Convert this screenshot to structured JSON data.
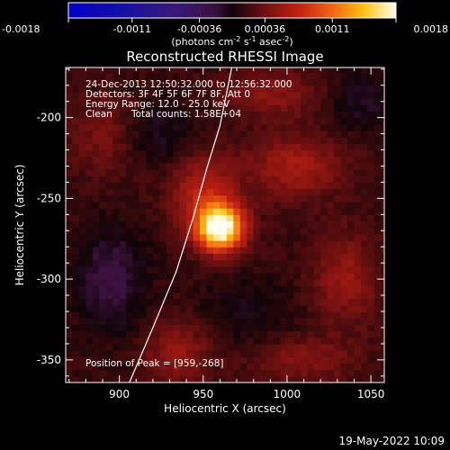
{
  "colorbar": {
    "ticks": [
      "-0.0018",
      "-0.0011",
      "-0.00036",
      "0.00036",
      "0.0011",
      "0.0018"
    ],
    "tick_values": [
      -0.0018,
      -0.0011,
      -0.00036,
      0.00036,
      0.0011,
      0.0018
    ],
    "range": [
      -0.0018,
      0.0018
    ],
    "units_prefix": "(photons cm",
    "units_exp1": "-2",
    "units_mid1": " s",
    "units_exp2": "-1",
    "units_mid2": " asec",
    "units_exp3": "-2",
    "units_suffix": ")"
  },
  "chart_data": {
    "type": "heatmap",
    "title": "Reconstructed RHESSI Image",
    "xlabel": "Heliocentric X (arcsec)",
    "ylabel": "Heliocentric Y (arcsec)",
    "xlim": [
      868,
      1058
    ],
    "ylim": [
      -364,
      -169
    ],
    "x_ticks": [
      900,
      950,
      1000,
      1050
    ],
    "y_ticks": [
      -200,
      -250,
      -300,
      -350
    ],
    "x_tick_labels": [
      "900",
      "950",
      "1000",
      "1050"
    ],
    "y_tick_labels": [
      "-200",
      "-250",
      "-300",
      "-350"
    ],
    "peak": [
      959,
      -268
    ],
    "limb_curve": [
      [
        906,
        -364
      ],
      [
        920,
        -330
      ],
      [
        934,
        -295
      ],
      [
        944,
        -262
      ],
      [
        952,
        -232
      ],
      [
        960,
        -205
      ],
      [
        967,
        -169
      ]
    ],
    "blobs": [
      {
        "x": 960,
        "y": -268,
        "sx": 10,
        "sy": 10,
        "a": 1.55
      },
      {
        "x": 950,
        "y": -245,
        "sx": 14,
        "sy": 16,
        "a": 0.45
      },
      {
        "x": 1005,
        "y": -230,
        "sx": 20,
        "sy": 14,
        "a": 0.38
      },
      {
        "x": 1035,
        "y": -300,
        "sx": 14,
        "sy": 20,
        "a": 0.33
      },
      {
        "x": 990,
        "y": -185,
        "sx": 22,
        "sy": 10,
        "a": 0.28
      },
      {
        "x": 935,
        "y": -345,
        "sx": 14,
        "sy": 14,
        "a": 0.32
      },
      {
        "x": 1010,
        "y": -350,
        "sx": 22,
        "sy": 10,
        "a": 0.25
      },
      {
        "x": 890,
        "y": -210,
        "sx": 14,
        "sy": 18,
        "a": 0.22
      },
      {
        "x": 895,
        "y": -300,
        "sx": 14,
        "sy": 22,
        "a": -0.32
      },
      {
        "x": 925,
        "y": -210,
        "sx": 16,
        "sy": 14,
        "a": -0.18
      },
      {
        "x": 1045,
        "y": -190,
        "sx": 14,
        "sy": 14,
        "a": -0.2
      },
      {
        "x": 975,
        "y": -320,
        "sx": 20,
        "sy": 14,
        "a": -0.15
      }
    ]
  },
  "info": {
    "line1": "24-Dec-2013 12:50:32.000 to 12:56:32.000",
    "line2": "Detectors: 3F 4F 5F 6F 7F 8F, Att 0",
    "line3": "Energy Range: 12.0 - 25.0 keV",
    "line4_a": "Clean",
    "line4_b": "Total counts: 1.58E+04",
    "peak_text": "Position of Peak = [959,-268]"
  },
  "footer": {
    "date": "19-May-2022 10:09"
  }
}
